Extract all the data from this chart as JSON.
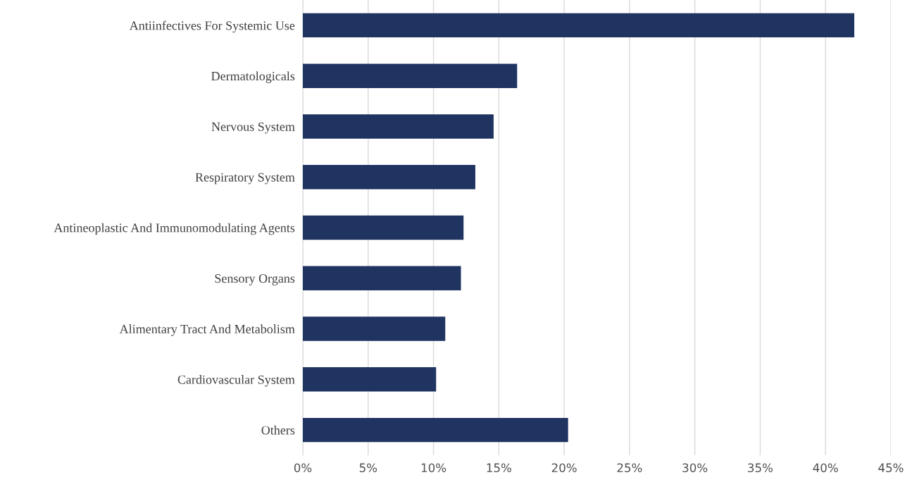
{
  "chart_data": {
    "type": "bar",
    "orientation": "horizontal",
    "categories": [
      "Antiinfectives For Systemic Use",
      "Dermatologicals",
      "Nervous System",
      "Respiratory System",
      "Antineoplastic And Immunomodulating Agents",
      "Sensory Organs",
      "Alimentary Tract And Metabolism",
      "Cardiovascular System",
      "Others"
    ],
    "values": [
      42.2,
      16.4,
      14.6,
      13.2,
      12.3,
      12.1,
      10.9,
      10.2,
      20.3
    ],
    "color": "#1f3461",
    "xlim": [
      0,
      45
    ],
    "xticks": [
      {
        "value": 0,
        "label": "0%"
      },
      {
        "value": 5,
        "label": "5%"
      },
      {
        "value": 10,
        "label": "10%"
      },
      {
        "value": 15,
        "label": "15%"
      },
      {
        "value": 20,
        "label": "20%"
      },
      {
        "value": 25,
        "label": "25%"
      },
      {
        "value": 30,
        "label": "30%"
      },
      {
        "value": 35,
        "label": "35%"
      },
      {
        "value": 40,
        "label": "40%"
      },
      {
        "value": 45,
        "label": "45%"
      }
    ],
    "grid": "x"
  }
}
